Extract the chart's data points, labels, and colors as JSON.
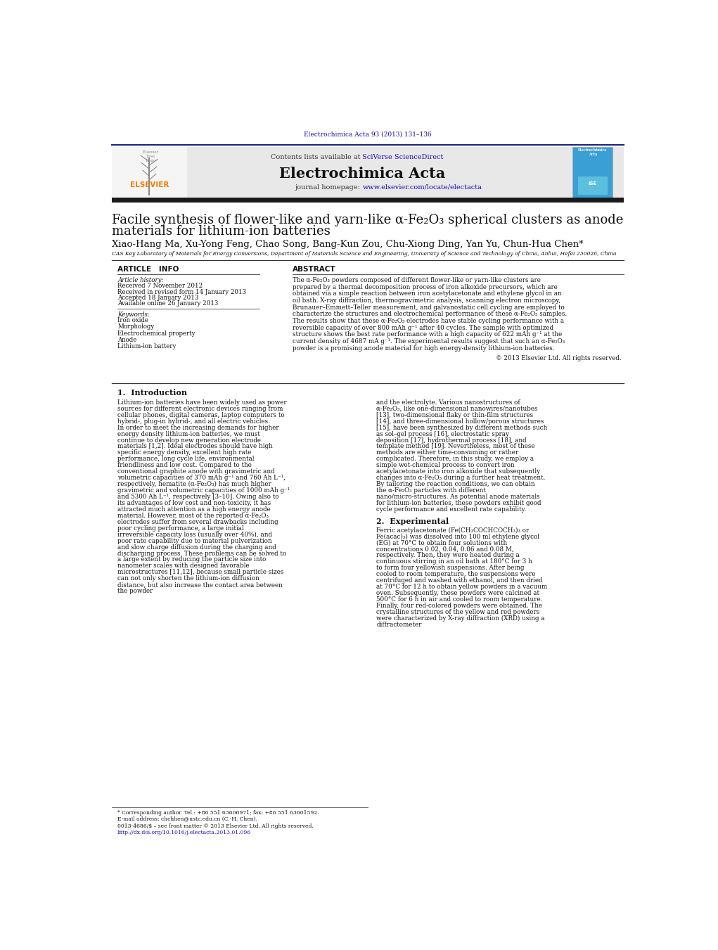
{
  "page_width": 10.21,
  "page_height": 13.51,
  "background_color": "#ffffff",
  "top_journal_ref": "Electrochimica Acta 93 (2013) 131–136",
  "top_journal_ref_color": "#1a0dab",
  "header_bg_color": "#e8e8e8",
  "journal_name": "Electrochimica Acta",
  "contents_text": "Contents lists available at ",
  "sciverse_text": "SciVerse ScienceDirect",
  "sciverse_color": "#1a0dab",
  "homepage_text": "journal homepage: ",
  "homepage_url": "www.elsevier.com/locate/electacta",
  "homepage_url_color": "#1a0dab",
  "elsevier_color": "#f57c00",
  "dark_bar_color": "#1a1a1a",
  "title_line1": "Facile synthesis of flower-like and yarn-like α-Fe₂O₃ spherical clusters as anode",
  "title_line2": "materials for lithium-ion batteries",
  "authors": "Xiao-Hang Ma, Xu-Yong Feng, Chao Song, Bang-Kun Zou, Chu-Xiong Ding, Yan Yu, Chun-Hua Chen",
  "affiliation": "CAS Key Laboratory of Materials for Energy Conversions, Department of Materials Science and Engineering, University of Science and Technology of China, Anhui, Hefei 230026, China",
  "article_info_header": "ARTICLE   INFO",
  "abstract_header": "ABSTRACT",
  "article_history_label": "Article history:",
  "received": "Received 7 November 2012",
  "received_revised": "Received in revised form 14 January 2013",
  "accepted": "Accepted 18 January 2013",
  "available": "Available online 26 January 2013",
  "keywords_label": "Keywords:",
  "keywords": [
    "Iron oxide",
    "Morphology",
    "Electrochemical property",
    "Anode",
    "Lithium-ion battery"
  ],
  "abstract_text": "The α-Fe₂O₃ powders composed of different flower-like or yarn-like clusters are prepared by a thermal decomposition process of iron alkoxide precursors, which are obtained via a simple reaction between iron acetylacetonate and ethylene glycol in an oil bath. X-ray diffraction, thermogravimetric analysis, scanning electron microscopy, Brunauer–Emmett–Teller measurement, and galvanostatic cell cycling are employed to characterize the structures and electrochemical performance of these α-Fe₂O₃ samples. The results show that these α-Fe₂O₃ electrodes have stable cycling performance with a reversible capacity of over 800 mAh g⁻¹ after 40 cycles. The sample with optimized structure shows the best rate performance with a high capacity of 622 mAh g⁻¹ at the current density of 4687 mA g⁻¹. The experimental results suggest that such an α-Fe₂O₃ powder is a promising anode material for high energy-density lithium-ion batteries.",
  "copyright": "© 2013 Elsevier Ltd. All rights reserved.",
  "intro_header": "1.  Introduction",
  "intro_text_col1": "    Lithium-ion batteries have been widely used as power sources for different electronic devices ranging from cellular phones, digital cameras, laptop computers to hybrid-, plug-in hybrid-, and all electric vehicles. In order to meet the increasing demands for higher energy density lithium-ion batteries, we must continue to develop new generation electrode materials [1,2]. Ideal electrodes should have high specific energy density, excellent high rate performance, long cycle life, environmental friendliness and low cost. Compared to the conventional graphite anode with gravimetric and volumetric capacities of 370 mAh g⁻¹ and 760 Ah L⁻¹, respectively, hematite (α-Fe₂O₃) has much higher gravimetric and volumetric capacities of 1000 mAh g⁻¹ and 5300 Ah L⁻¹, respectively [3–10]. Owing also to its advantages of low cost and non-toxicity, it has attracted much attention as a high energy anode material. However, most of the reported α-Fe₂O₃ electrodes suffer from several drawbacks including poor cycling performance, a large initial irreversible capacity loss (usually over 40%), and poor rate capability due to material pulverization and slow charge diffusion during the charging and discharging process. These problems can be solved to a large extent by reducing the particle size into nanometer scales with designed favorable microstructures [11,12], because small particle sizes can not only shorten the lithium-ion diffusion distance, but also increase the contact area between the powder",
  "intro_text_col2": "and the electrolyte. Various nanostructures of α-Fe₂O₃, like one-dimensional nanowires/nanotubes [13], two-dimensional flaky or thin-film structures [14], and three-dimensional hollow/porous structures [15], have been synthesized by different methods such as sol–gel process [16], electrostatic spray deposition [17], hydrothermal process [18], and template method [19]. Nevertheless, most of these methods are either time-consuming or rather complicated. Therefore, in this study, we employ a simple wet-chemical process to convert iron acetylacetonate into iron alkoxide that subsequently changes into α-Fe₂O₃ during a further heat treatment. By tailoring the reaction conditions, we can obtain the α-Fe₂O₃ particles with different nano/micro-structures. As potential anode materials for lithium-ion batteries, these powders exhibit good cycle performance and excellent rate capability.",
  "experimental_header": "2.  Experimental",
  "experimental_text": "    Ferric acetylacetonate (Fe(CH₃COCHCOCH₃)₃ or Fe(acac)₃) was dissolved into 100 ml ethylene glycol (EG) at 70°C to obtain four solutions with concentrations 0.02, 0.04, 0.06 and 0.08 M, respectively. Then, they were heated during a continuous stirring in an oil bath at 180°C for 3 h to form four yellowish suspensions. After being cooled to room temperature, the suspensions were centrifuged and washed with ethanol, and then dried at 70°C for 12 h to obtain yellow powders in a vacuum oven. Subsequently, these powders were calcined at 500°C for 6 h in air and cooled to room temperature. Finally, four red-colored powders were obtained.",
  "experimental_text2": "    The crystalline structures of the yellow and red powders were characterized by X-ray diffraction (XRD) using a diffractometer",
  "footnote_star": "* Corresponding author. Tel.: +86 551 63606971; fax: +86 551 63601592.",
  "footnote_email": "E-mail address: chchhen@ustc.edu.cn (C.-H. Chen).",
  "footnote_issn": "0013-4686/$ – see front matter © 2013 Elsevier Ltd. All rights reserved.",
  "footnote_doi": "http://dx.doi.org/10.1016/j.electacta.2013.01.096"
}
